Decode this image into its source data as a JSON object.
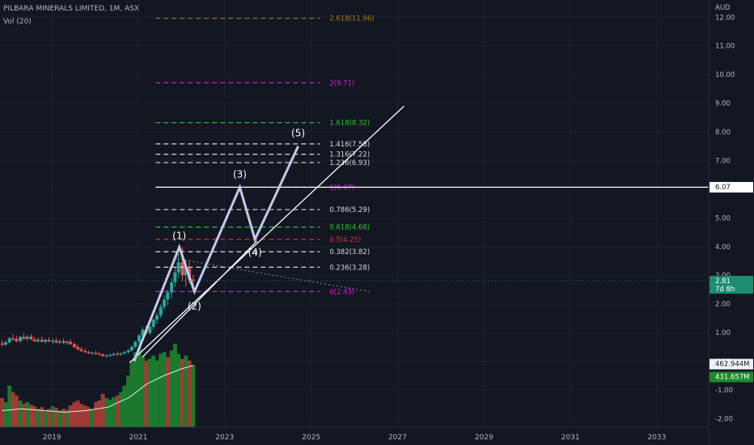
{
  "header": {
    "title": "PILBARA MINERALS LIMITED, 1M, ASX",
    "indicator": "Vol (20)"
  },
  "colors": {
    "background": "#131722",
    "grid": "#1e222d",
    "text": "#b2b5be",
    "up": "#26a69a",
    "down": "#ef5350",
    "vol_up": "#1b7a2b",
    "vol_down": "#a03a37",
    "wave": "#c5cae9",
    "white": "#ffffff"
  },
  "chart_data": {
    "type": "line",
    "title": "PILBARA MINERALS LIMITED, 1M, ASX",
    "currency_label": "AUD",
    "y_ticks": [
      "12.00",
      "11.00",
      "10.00",
      "9.00",
      "8.00",
      "7.00",
      "6.00",
      "5.00",
      "4.00",
      "3.00",
      "2.00",
      "1.00",
      "0.00",
      "-1.00",
      "-2.00"
    ],
    "x_ticks": [
      "2019",
      "2021",
      "2023",
      "2025",
      "2027",
      "2029",
      "2031",
      "2033"
    ],
    "ylim": [
      -2.3,
      12.6
    ],
    "xlim": [
      2017.8,
      2034.2
    ],
    "fib_levels": [
      {
        "ratio": "2.618",
        "price": "11.96",
        "label": "2.618(11.96)",
        "value": 11.96,
        "color": "#a37c1c"
      },
      {
        "ratio": "2",
        "price": "9.71",
        "label": "2(9.71)",
        "value": 9.71,
        "color": "#d41fd4"
      },
      {
        "ratio": "1.618",
        "price": "8.32",
        "label": "1.618(8.32)",
        "value": 8.32,
        "color": "#2ec12e"
      },
      {
        "ratio": "1.416",
        "price": "7.58",
        "label": "1.416(7.58)",
        "value": 7.58,
        "color": "#d9d9d9"
      },
      {
        "ratio": "1.316",
        "price": "7.22",
        "label": "1.316(7.22)",
        "value": 7.22,
        "color": "#d9d9d9"
      },
      {
        "ratio": "1.236",
        "price": "6.93",
        "label": "1.236(6.93)",
        "value": 6.93,
        "color": "#d9d9d9"
      },
      {
        "ratio": "1",
        "price": "6.07",
        "label": "1(6.07)",
        "value": 6.07,
        "color": "#d41fd4"
      },
      {
        "ratio": "0.786",
        "price": "5.29",
        "label": "0.786(5.29)",
        "value": 5.29,
        "color": "#d9d9d9"
      },
      {
        "ratio": "0.618",
        "price": "4.68",
        "label": "0.618(4.68)",
        "value": 4.68,
        "color": "#2ec12e"
      },
      {
        "ratio": "0.5",
        "price": "4.25",
        "label": "0.5(4.25)",
        "value": 4.25,
        "color": "#e03030"
      },
      {
        "ratio": "0.382",
        "price": "3.82",
        "label": "0.382(3.82)",
        "value": 3.82,
        "color": "#d9d9d9"
      },
      {
        "ratio": "0.236",
        "price": "3.28",
        "label": "0.236(3.28)",
        "value": 3.28,
        "color": "#d9d9d9"
      },
      {
        "ratio": "0",
        "price": "2.43",
        "label": "0(2.43)",
        "value": 2.43,
        "color": "#d41fd4"
      }
    ],
    "fib_x_range": [
      2021.4,
      2025.2
    ],
    "horizontal_line": {
      "value": 6.07,
      "label": "6.07",
      "x_start": 2021.4
    },
    "wave_points": [
      {
        "x": 2020.9,
        "y": 0.0,
        "label": ""
      },
      {
        "x": 2021.95,
        "y": 3.98,
        "label": "(1)"
      },
      {
        "x": 2022.3,
        "y": 2.43,
        "label": "(2)"
      },
      {
        "x": 2023.35,
        "y": 6.07,
        "label": "(3)"
      },
      {
        "x": 2023.7,
        "y": 4.25,
        "label": "(4)"
      },
      {
        "x": 2024.7,
        "y": 7.5,
        "label": "(5)"
      }
    ],
    "trend_lines": [
      {
        "x1": 2020.8,
        "y1": -0.05,
        "x2": 2027.15,
        "y2": 8.9
      },
      {
        "x1": 2021.1,
        "y1": 0.15,
        "x2": 2023.75,
        "y2": 4.2
      }
    ],
    "dotted_line": {
      "x1": 2021.8,
      "y1": 3.6,
      "x2": 2026.35,
      "y2": 2.43
    },
    "current_price": {
      "value": 2.81,
      "label": "2.81",
      "countdown": "7d 8h"
    },
    "volume_labels": [
      {
        "label": "462.944M",
        "value": -0.1
      },
      {
        "label": "431.657M",
        "value": -0.55
      }
    ],
    "candles": [
      {
        "t": 2017.85,
        "o": 0.62,
        "h": 0.75,
        "l": 0.5,
        "c": 0.58
      },
      {
        "t": 2017.93,
        "o": 0.58,
        "h": 0.72,
        "l": 0.52,
        "c": 0.66
      },
      {
        "t": 2018.02,
        "o": 0.66,
        "h": 0.85,
        "l": 0.62,
        "c": 0.8
      },
      {
        "t": 2018.1,
        "o": 0.8,
        "h": 0.95,
        "l": 0.7,
        "c": 0.78
      },
      {
        "t": 2018.18,
        "o": 0.78,
        "h": 0.9,
        "l": 0.65,
        "c": 0.7
      },
      {
        "t": 2018.27,
        "o": 0.7,
        "h": 0.88,
        "l": 0.66,
        "c": 0.85
      },
      {
        "t": 2018.35,
        "o": 0.85,
        "h": 0.98,
        "l": 0.75,
        "c": 0.78
      },
      {
        "t": 2018.43,
        "o": 0.78,
        "h": 0.92,
        "l": 0.7,
        "c": 0.86
      },
      {
        "t": 2018.52,
        "o": 0.86,
        "h": 0.95,
        "l": 0.74,
        "c": 0.76
      },
      {
        "t": 2018.6,
        "o": 0.76,
        "h": 0.85,
        "l": 0.66,
        "c": 0.7
      },
      {
        "t": 2018.68,
        "o": 0.7,
        "h": 0.82,
        "l": 0.64,
        "c": 0.75
      },
      {
        "t": 2018.77,
        "o": 0.75,
        "h": 0.86,
        "l": 0.66,
        "c": 0.68
      },
      {
        "t": 2018.85,
        "o": 0.68,
        "h": 0.8,
        "l": 0.62,
        "c": 0.74
      },
      {
        "t": 2018.93,
        "o": 0.74,
        "h": 0.84,
        "l": 0.66,
        "c": 0.69
      },
      {
        "t": 2019.02,
        "o": 0.69,
        "h": 0.8,
        "l": 0.6,
        "c": 0.72
      },
      {
        "t": 2019.1,
        "o": 0.72,
        "h": 0.82,
        "l": 0.62,
        "c": 0.66
      },
      {
        "t": 2019.18,
        "o": 0.66,
        "h": 0.76,
        "l": 0.58,
        "c": 0.7
      },
      {
        "t": 2019.27,
        "o": 0.7,
        "h": 0.8,
        "l": 0.6,
        "c": 0.64
      },
      {
        "t": 2019.35,
        "o": 0.64,
        "h": 0.74,
        "l": 0.56,
        "c": 0.68
      },
      {
        "t": 2019.43,
        "o": 0.68,
        "h": 0.76,
        "l": 0.55,
        "c": 0.6
      },
      {
        "t": 2019.52,
        "o": 0.6,
        "h": 0.66,
        "l": 0.45,
        "c": 0.5
      },
      {
        "t": 2019.6,
        "o": 0.5,
        "h": 0.58,
        "l": 0.38,
        "c": 0.42
      },
      {
        "t": 2019.68,
        "o": 0.42,
        "h": 0.5,
        "l": 0.32,
        "c": 0.36
      },
      {
        "t": 2019.77,
        "o": 0.36,
        "h": 0.44,
        "l": 0.28,
        "c": 0.32
      },
      {
        "t": 2019.85,
        "o": 0.32,
        "h": 0.38,
        "l": 0.25,
        "c": 0.28
      },
      {
        "t": 2019.93,
        "o": 0.28,
        "h": 0.34,
        "l": 0.22,
        "c": 0.3
      },
      {
        "t": 2020.02,
        "o": 0.3,
        "h": 0.36,
        "l": 0.22,
        "c": 0.26
      },
      {
        "t": 2020.1,
        "o": 0.26,
        "h": 0.32,
        "l": 0.2,
        "c": 0.24
      },
      {
        "t": 2020.18,
        "o": 0.24,
        "h": 0.28,
        "l": 0.15,
        "c": 0.18
      },
      {
        "t": 2020.27,
        "o": 0.18,
        "h": 0.24,
        "l": 0.13,
        "c": 0.2
      },
      {
        "t": 2020.35,
        "o": 0.2,
        "h": 0.27,
        "l": 0.16,
        "c": 0.22
      },
      {
        "t": 2020.43,
        "o": 0.22,
        "h": 0.3,
        "l": 0.18,
        "c": 0.26
      },
      {
        "t": 2020.52,
        "o": 0.26,
        "h": 0.34,
        "l": 0.2,
        "c": 0.24
      },
      {
        "t": 2020.6,
        "o": 0.24,
        "h": 0.3,
        "l": 0.18,
        "c": 0.28
      },
      {
        "t": 2020.68,
        "o": 0.28,
        "h": 0.36,
        "l": 0.22,
        "c": 0.32
      },
      {
        "t": 2020.77,
        "o": 0.32,
        "h": 0.42,
        "l": 0.26,
        "c": 0.38
      },
      {
        "t": 2020.85,
        "o": 0.38,
        "h": 0.55,
        "l": 0.34,
        "c": 0.5
      },
      {
        "t": 2020.93,
        "o": 0.5,
        "h": 0.72,
        "l": 0.45,
        "c": 0.68
      },
      {
        "t": 2021.02,
        "o": 0.68,
        "h": 0.95,
        "l": 0.6,
        "c": 0.9
      },
      {
        "t": 2021.1,
        "o": 0.9,
        "h": 1.2,
        "l": 0.82,
        "c": 1.1
      },
      {
        "t": 2021.18,
        "o": 1.1,
        "h": 1.25,
        "l": 0.9,
        "c": 0.98
      },
      {
        "t": 2021.27,
        "o": 0.98,
        "h": 1.25,
        "l": 0.92,
        "c": 1.2
      },
      {
        "t": 2021.35,
        "o": 1.2,
        "h": 1.5,
        "l": 1.1,
        "c": 1.45
      },
      {
        "t": 2021.43,
        "o": 1.45,
        "h": 1.7,
        "l": 1.3,
        "c": 1.6
      },
      {
        "t": 2021.52,
        "o": 1.6,
        "h": 2.0,
        "l": 1.5,
        "c": 1.9
      },
      {
        "t": 2021.6,
        "o": 1.9,
        "h": 2.3,
        "l": 1.8,
        "c": 2.15
      },
      {
        "t": 2021.68,
        "o": 2.15,
        "h": 2.5,
        "l": 1.95,
        "c": 2.4
      },
      {
        "t": 2021.77,
        "o": 2.4,
        "h": 2.9,
        "l": 2.2,
        "c": 2.75
      },
      {
        "t": 2021.85,
        "o": 2.75,
        "h": 3.3,
        "l": 2.6,
        "c": 3.1
      },
      {
        "t": 2021.93,
        "o": 3.1,
        "h": 3.75,
        "l": 2.9,
        "c": 3.45
      },
      {
        "t": 2022.02,
        "o": 3.45,
        "h": 3.98,
        "l": 2.8,
        "c": 3.0
      },
      {
        "t": 2022.1,
        "o": 3.0,
        "h": 3.55,
        "l": 2.6,
        "c": 3.25
      },
      {
        "t": 2022.18,
        "o": 3.25,
        "h": 3.5,
        "l": 2.7,
        "c": 2.85
      },
      {
        "t": 2022.27,
        "o": 2.85,
        "h": 3.0,
        "l": 2.43,
        "c": 2.81
      }
    ],
    "volume": [
      {
        "t": 2017.85,
        "v": 0.35,
        "up": false
      },
      {
        "t": 2017.93,
        "v": 0.3,
        "up": true
      },
      {
        "t": 2018.02,
        "v": 0.5,
        "up": true
      },
      {
        "t": 2018.1,
        "v": 0.42,
        "up": false
      },
      {
        "t": 2018.18,
        "v": 0.38,
        "up": false
      },
      {
        "t": 2018.27,
        "v": 0.32,
        "up": true
      },
      {
        "t": 2018.35,
        "v": 0.28,
        "up": false
      },
      {
        "t": 2018.43,
        "v": 0.3,
        "up": true
      },
      {
        "t": 2018.52,
        "v": 0.27,
        "up": false
      },
      {
        "t": 2018.6,
        "v": 0.25,
        "up": false
      },
      {
        "t": 2018.68,
        "v": 0.22,
        "up": true
      },
      {
        "t": 2018.77,
        "v": 0.24,
        "up": false
      },
      {
        "t": 2018.85,
        "v": 0.2,
        "up": true
      },
      {
        "t": 2018.93,
        "v": 0.22,
        "up": false
      },
      {
        "t": 2019.02,
        "v": 0.25,
        "up": true
      },
      {
        "t": 2019.1,
        "v": 0.23,
        "up": false
      },
      {
        "t": 2019.18,
        "v": 0.2,
        "up": true
      },
      {
        "t": 2019.27,
        "v": 0.22,
        "up": false
      },
      {
        "t": 2019.35,
        "v": 0.21,
        "up": true
      },
      {
        "t": 2019.43,
        "v": 0.26,
        "up": false
      },
      {
        "t": 2019.52,
        "v": 0.3,
        "up": false
      },
      {
        "t": 2019.6,
        "v": 0.32,
        "up": false
      },
      {
        "t": 2019.68,
        "v": 0.28,
        "up": false
      },
      {
        "t": 2019.77,
        "v": 0.26,
        "up": false
      },
      {
        "t": 2019.85,
        "v": 0.24,
        "up": false
      },
      {
        "t": 2019.93,
        "v": 0.22,
        "up": true
      },
      {
        "t": 2020.02,
        "v": 0.3,
        "up": false
      },
      {
        "t": 2020.1,
        "v": 0.32,
        "up": false
      },
      {
        "t": 2020.18,
        "v": 0.4,
        "up": false
      },
      {
        "t": 2020.27,
        "v": 0.35,
        "up": true
      },
      {
        "t": 2020.35,
        "v": 0.33,
        "up": true
      },
      {
        "t": 2020.43,
        "v": 0.36,
        "up": true
      },
      {
        "t": 2020.52,
        "v": 0.38,
        "up": false
      },
      {
        "t": 2020.6,
        "v": 0.42,
        "up": true
      },
      {
        "t": 2020.68,
        "v": 0.5,
        "up": true
      },
      {
        "t": 2020.77,
        "v": 0.62,
        "up": true
      },
      {
        "t": 2020.85,
        "v": 0.78,
        "up": true
      },
      {
        "t": 2020.93,
        "v": 0.9,
        "up": true
      },
      {
        "t": 2021.02,
        "v": 0.95,
        "up": true
      },
      {
        "t": 2021.1,
        "v": 0.85,
        "up": true
      },
      {
        "t": 2021.18,
        "v": 0.8,
        "up": false
      },
      {
        "t": 2021.27,
        "v": 0.82,
        "up": true
      },
      {
        "t": 2021.35,
        "v": 0.86,
        "up": true
      },
      {
        "t": 2021.43,
        "v": 0.8,
        "up": true
      },
      {
        "t": 2021.52,
        "v": 0.88,
        "up": true
      },
      {
        "t": 2021.6,
        "v": 0.9,
        "up": true
      },
      {
        "t": 2021.68,
        "v": 0.84,
        "up": false
      },
      {
        "t": 2021.77,
        "v": 0.92,
        "up": true
      },
      {
        "t": 2021.85,
        "v": 1.0,
        "up": true
      },
      {
        "t": 2021.93,
        "v": 0.88,
        "up": true
      },
      {
        "t": 2022.02,
        "v": 0.82,
        "up": false
      },
      {
        "t": 2022.1,
        "v": 0.86,
        "up": true
      },
      {
        "t": 2022.18,
        "v": 0.8,
        "up": false
      },
      {
        "t": 2022.27,
        "v": 0.75,
        "up": true
      }
    ],
    "volume_ma": [
      {
        "t": 2017.85,
        "v": 0.2
      },
      {
        "t": 2018.3,
        "v": 0.22
      },
      {
        "t": 2018.8,
        "v": 0.2
      },
      {
        "t": 2019.3,
        "v": 0.18
      },
      {
        "t": 2019.8,
        "v": 0.2
      },
      {
        "t": 2020.3,
        "v": 0.24
      },
      {
        "t": 2020.8,
        "v": 0.36
      },
      {
        "t": 2021.2,
        "v": 0.52
      },
      {
        "t": 2021.6,
        "v": 0.62
      },
      {
        "t": 2022.0,
        "v": 0.7
      },
      {
        "t": 2022.27,
        "v": 0.74
      }
    ]
  }
}
